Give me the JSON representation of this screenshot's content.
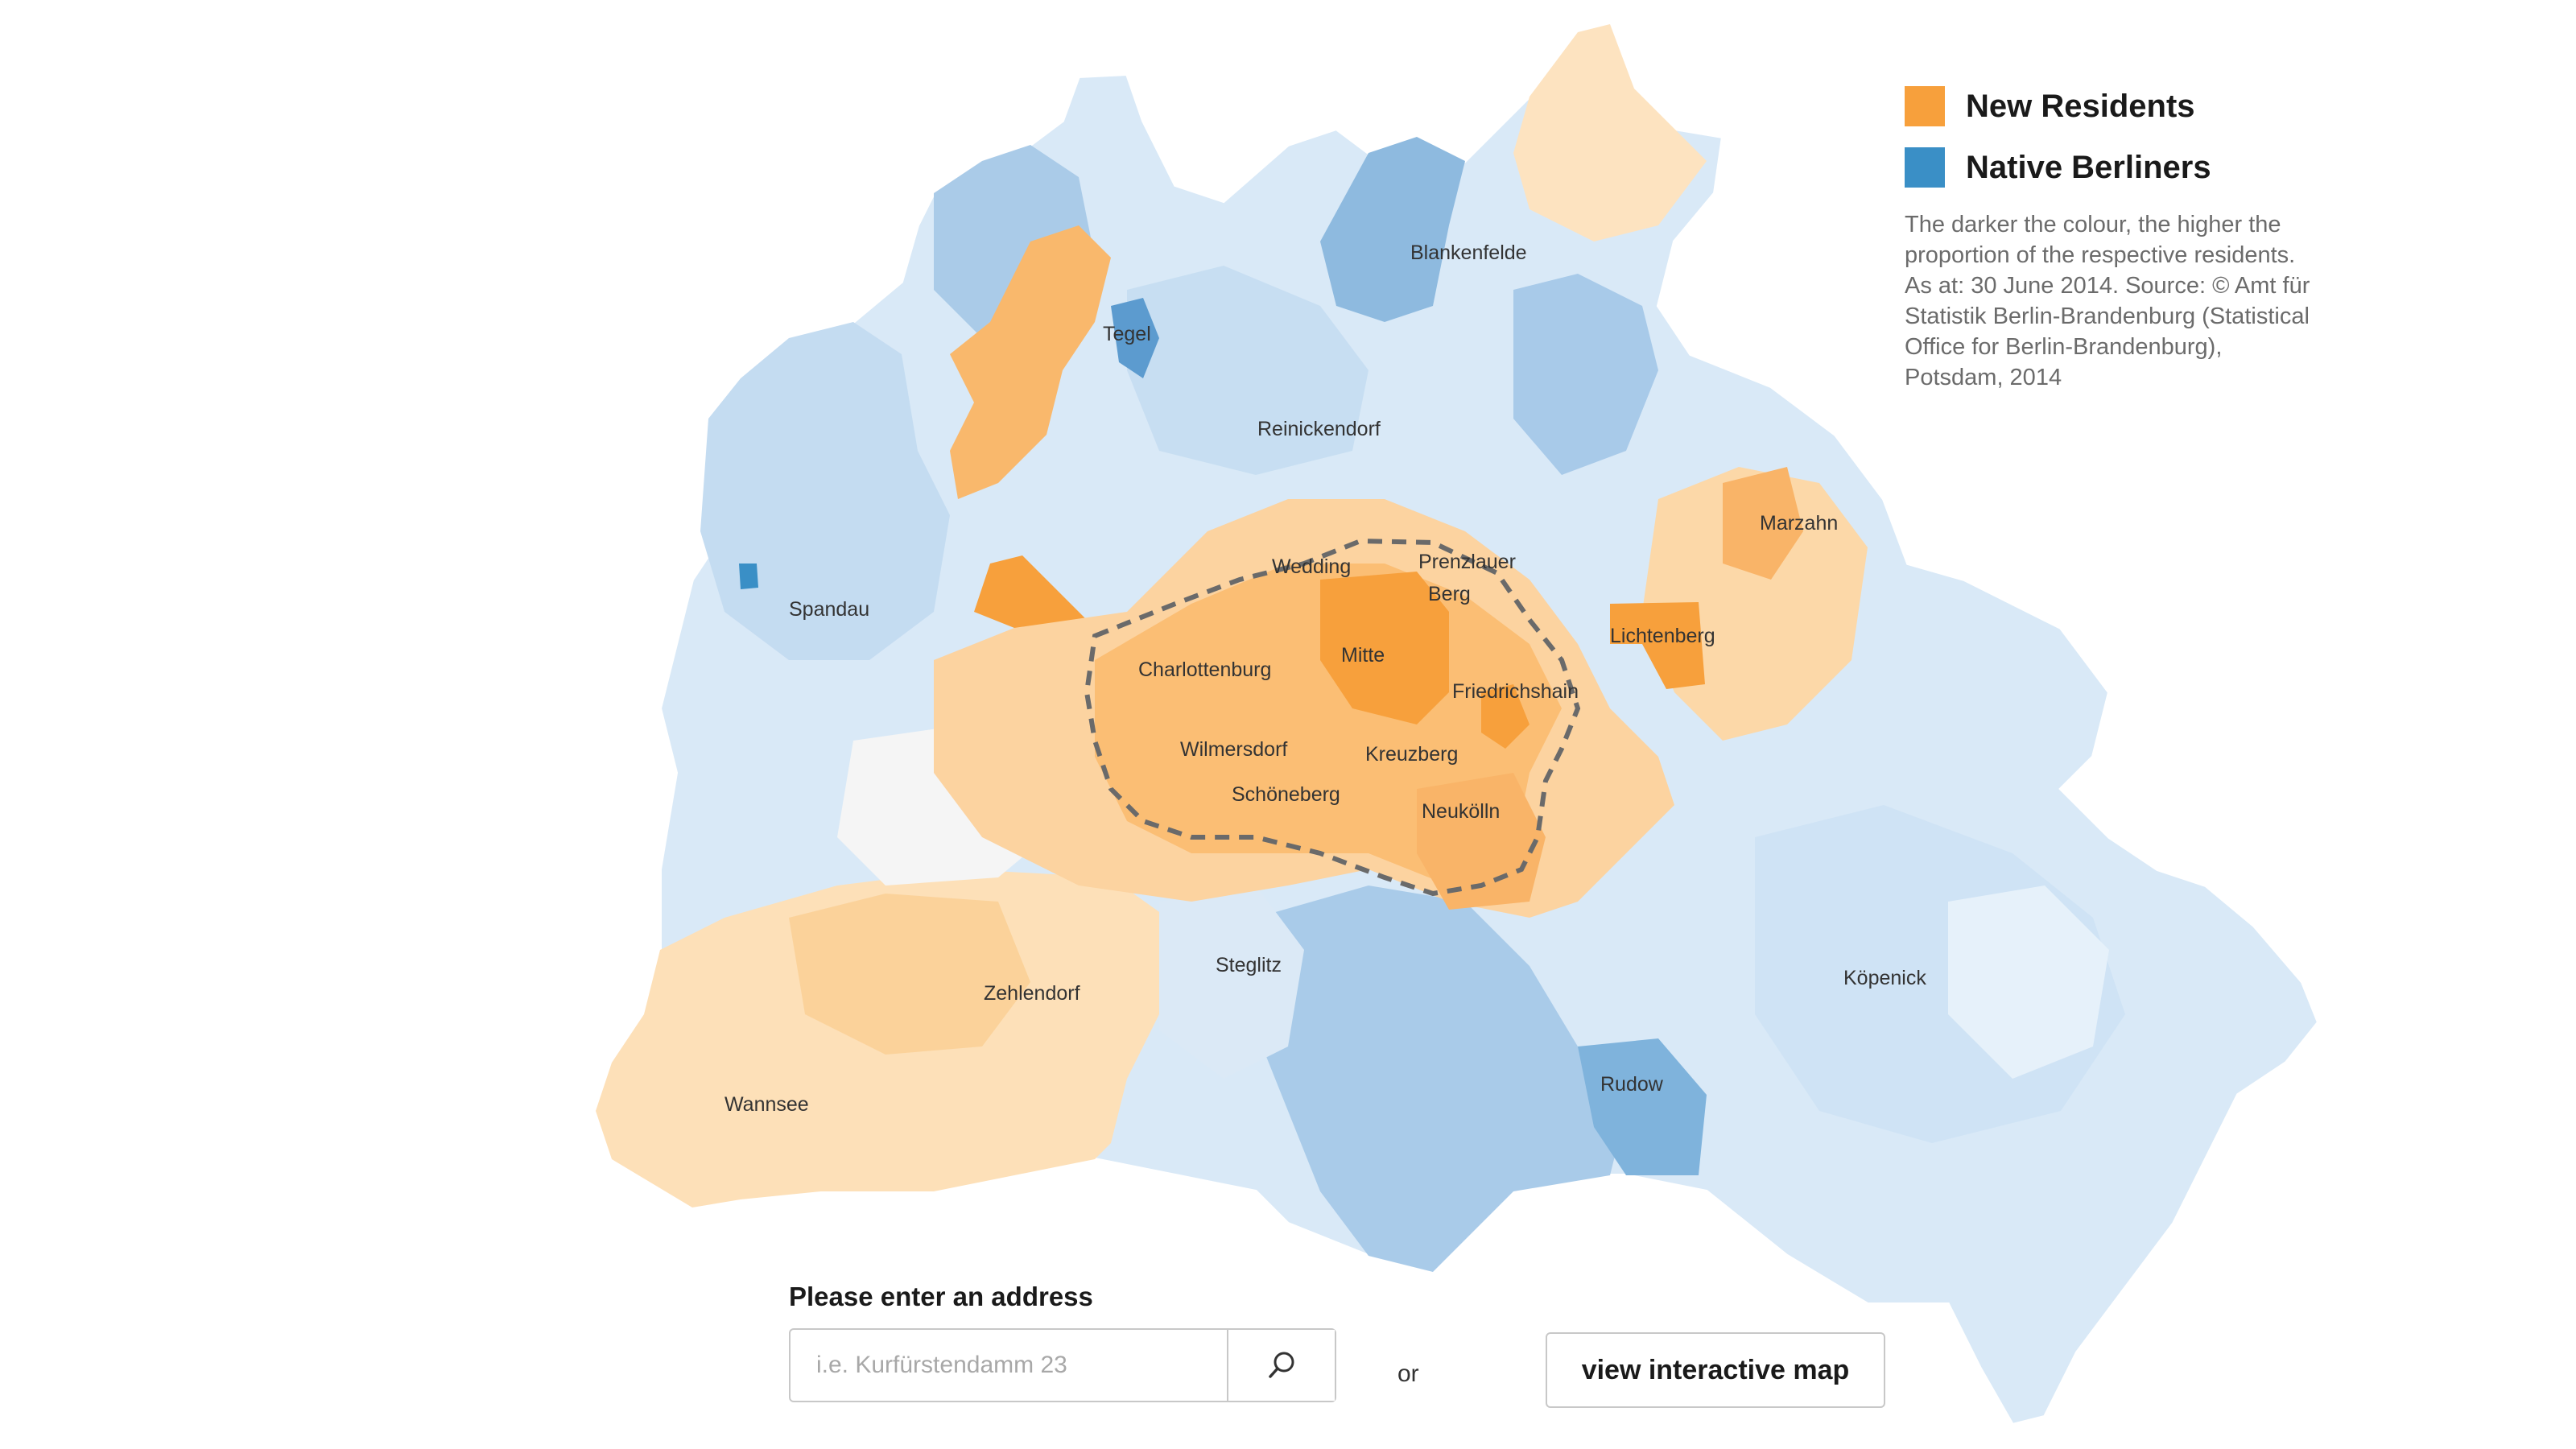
{
  "legend": {
    "items": [
      {
        "label": "New Residents",
        "color": "#f7a03c",
        "icon": "orange-swatch"
      },
      {
        "label": "Native Berliners",
        "color": "#3a8fc6",
        "icon": "blue-swatch"
      }
    ],
    "note": "The darker the colour, the higher the proportion of the respective residents. As at: 30 June 2014. Source: © Amt für Statistik Berlin-Brandenburg (Statistical Office for Berlin-Brandenburg), Potsdam, 2014"
  },
  "map": {
    "districts": [
      "Tegel",
      "Blankenfelde",
      "Reinickendorf",
      "Spandau",
      "Wedding",
      "Prenzlauer Berg",
      "Marzahn",
      "Lichtenberg",
      "Charlottenburg",
      "Mitte",
      "Friedrichshain",
      "Wilmersdorf",
      "Kreuzberg",
      "Schöneberg",
      "Neukölln",
      "Steglitz",
      "Zehlendorf",
      "Köpenick",
      "Rudow",
      "Wannsee"
    ],
    "colors": {
      "orange_dark": "#f7a03c",
      "orange_mid": "#fbc886",
      "orange_light": "#fde3c0",
      "blue_dark": "#7fb3dc",
      "blue_mid": "#b6d4ee",
      "blue_light": "#deecf8"
    }
  },
  "search": {
    "label": "Please enter an address",
    "placeholder": "i.e. Kurfürstendamm 23",
    "button_icon": "search-icon",
    "or": "or",
    "interactive_button": "view interactive map"
  }
}
